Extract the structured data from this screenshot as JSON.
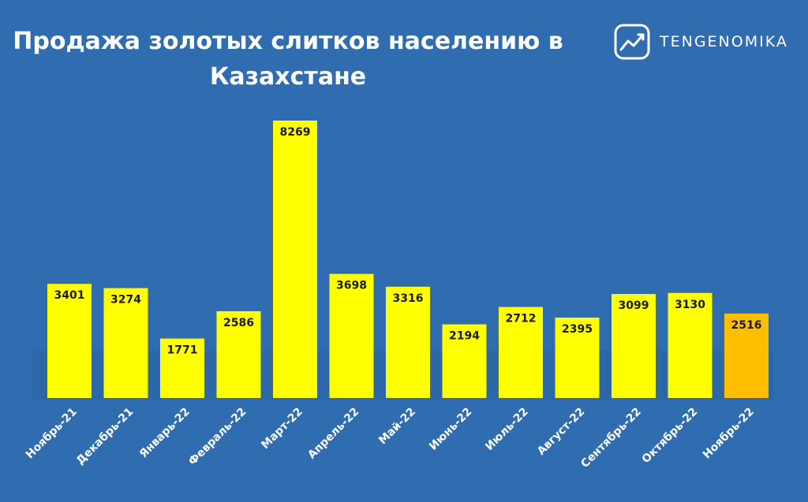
{
  "brand": {
    "name": "TENGENOMIKA",
    "icon": "trend-chart-icon"
  },
  "colors": {
    "background": "#2f6db0",
    "bar": "#ffff00",
    "highlight": "#ffbf00",
    "text": "#ffffff",
    "label": "#1a1a1a"
  },
  "chart_data": {
    "type": "bar",
    "title": [
      "Продажа золотых слитков населению в",
      "Казахстане"
    ],
    "categories": [
      "Ноябрь-21",
      "Декабрь-21",
      "Январь-22",
      "Февраль-22",
      "Март-22",
      "Апрель-22",
      "Май-22",
      "Июнь-22",
      "Июль-22",
      "Август-22",
      "Сентябрь-22",
      "Октябрь-22",
      "Ноябрь-22"
    ],
    "values": [
      3401,
      3274,
      1771,
      2586,
      8269,
      3698,
      3316,
      2194,
      2712,
      2395,
      3099,
      3130,
      2516
    ],
    "highlight_index": 12,
    "ylim": [
      0,
      8269
    ],
    "grid": false,
    "legend": false
  }
}
